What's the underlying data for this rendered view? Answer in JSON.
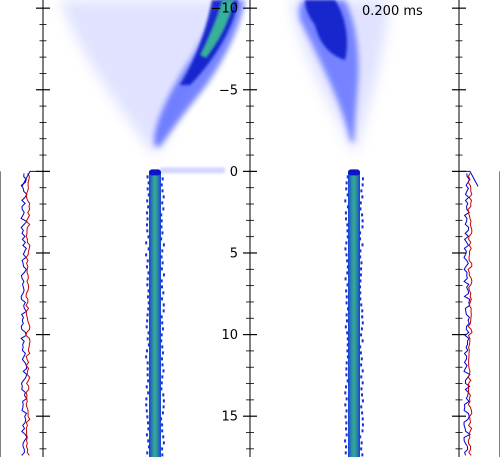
{
  "chart_data": {
    "type": "heatmap",
    "time_label": "0.200 ms",
    "y_axis": {
      "range": [
        -10.5,
        17.5
      ],
      "ticks": [
        -10,
        -5,
        0,
        5,
        10,
        15
      ],
      "tick_labels": [
        "−10",
        "−5",
        "0",
        "5",
        "10",
        "15"
      ]
    },
    "profile_series": [
      {
        "name": "",
        "color": "#0000cc"
      },
      {
        "name": "",
        "color": "#cc0000"
      }
    ],
    "colormap": [
      "#ffffff",
      "#c8c8ff",
      "#4a5cff",
      "#0014c8",
      "#2aa08c",
      "#7ee0c0"
    ]
  }
}
